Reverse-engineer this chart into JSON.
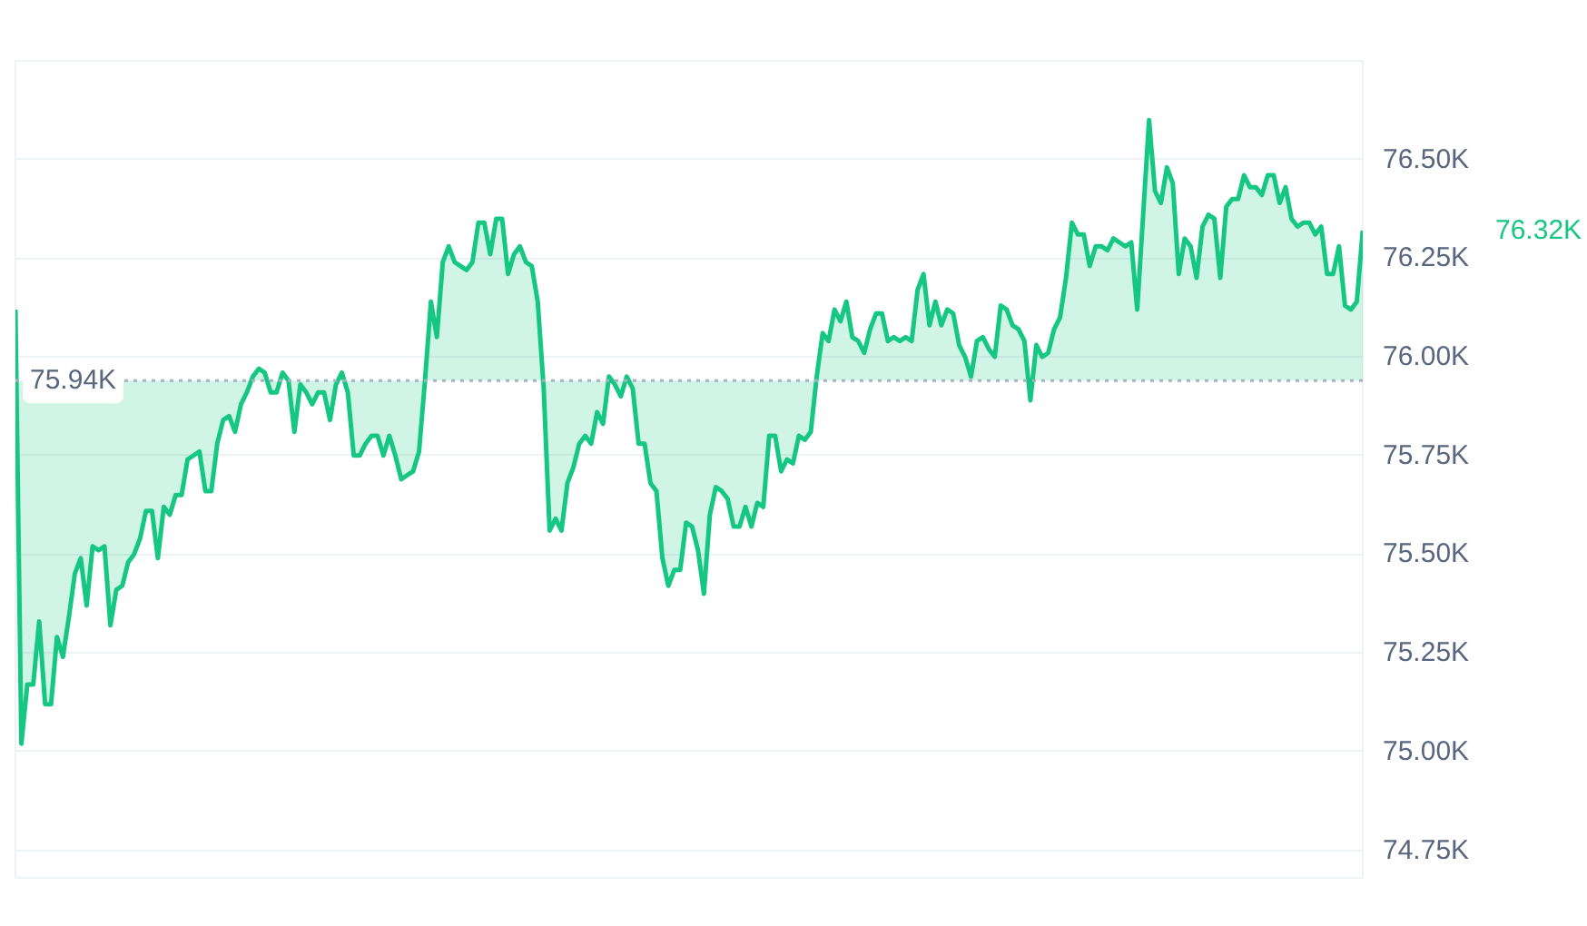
{
  "chart_data": {
    "type": "area",
    "categories": [
      null,
      null,
      null,
      null,
      null,
      null,
      null,
      null,
      null,
      null,
      null,
      null,
      null,
      null,
      null,
      null,
      null,
      null,
      null,
      null,
      null,
      null,
      null,
      null,
      null,
      null,
      null,
      null,
      null,
      null,
      null,
      null,
      null,
      null,
      null,
      null,
      null,
      null,
      null,
      null,
      null,
      null,
      null,
      null,
      null,
      null,
      null,
      null,
      null,
      null,
      null,
      null,
      null,
      null,
      null,
      null,
      null,
      null,
      null,
      null,
      null,
      null,
      null,
      null,
      null,
      null,
      null,
      null,
      null,
      null,
      null,
      null,
      null,
      null,
      null,
      null,
      null,
      null,
      null,
      null,
      null,
      null,
      null,
      null,
      null,
      null,
      null,
      null,
      null,
      null,
      null,
      null,
      null,
      null,
      null,
      null,
      null,
      null,
      null,
      null,
      null,
      null,
      null,
      null,
      null,
      null,
      null,
      null,
      null,
      null,
      null,
      null,
      null,
      null,
      null,
      null,
      null,
      null,
      null,
      null,
      null,
      null,
      null,
      null,
      null,
      null,
      null,
      null,
      null,
      null,
      null,
      null,
      null,
      null,
      null,
      null,
      null,
      null,
      null,
      null,
      null,
      null,
      null,
      null,
      null,
      null,
      null,
      null,
      null,
      null,
      null,
      null,
      null,
      null,
      null,
      null,
      null,
      null,
      null,
      null,
      null,
      null,
      null,
      null,
      null,
      null,
      null,
      null,
      null,
      null,
      null,
      null,
      null,
      null,
      null,
      null,
      null,
      null,
      null,
      null,
      null,
      null,
      null,
      null,
      null,
      null,
      null,
      null,
      null,
      null,
      null,
      null,
      null,
      null,
      null,
      null,
      null,
      null,
      null,
      null,
      null,
      null,
      null,
      null,
      null,
      null,
      null,
      null,
      null,
      null,
      null,
      null,
      null,
      null,
      null,
      null,
      null,
      null,
      null,
      null,
      null,
      null,
      null,
      null,
      null,
      null,
      null,
      null
    ],
    "series": [
      {
        "color": "#16c784",
        "values": [
          76.12,
          75.02,
          75.17,
          75.17,
          75.33,
          75.12,
          75.12,
          75.29,
          75.24,
          75.34,
          75.45,
          75.49,
          75.37,
          75.52,
          75.51,
          75.52,
          75.32,
          75.41,
          75.42,
          75.48,
          75.5,
          75.54,
          75.61,
          75.61,
          75.49,
          75.62,
          75.6,
          75.65,
          75.65,
          75.74,
          75.75,
          75.76,
          75.66,
          75.66,
          75.78,
          75.84,
          75.85,
          75.81,
          75.88,
          75.91,
          75.95,
          75.97,
          75.96,
          75.91,
          75.91,
          75.96,
          75.94,
          75.81,
          75.93,
          75.91,
          75.88,
          75.91,
          75.91,
          75.84,
          75.93,
          75.96,
          75.91,
          75.75,
          75.75,
          75.78,
          75.8,
          75.8,
          75.75,
          75.8,
          75.75,
          75.69,
          75.7,
          75.71,
          75.76,
          75.94,
          76.14,
          76.05,
          76.24,
          76.28,
          76.24,
          76.23,
          76.22,
          76.24,
          76.34,
          76.34,
          76.26,
          76.35,
          76.35,
          76.21,
          76.26,
          76.28,
          76.24,
          76.23,
          76.14,
          75.92,
          75.56,
          75.59,
          75.56,
          75.68,
          75.72,
          75.78,
          75.8,
          75.78,
          75.86,
          75.83,
          75.95,
          75.93,
          75.9,
          75.95,
          75.92,
          75.78,
          75.78,
          75.68,
          75.66,
          75.49,
          75.42,
          75.46,
          75.46,
          75.58,
          75.57,
          75.51,
          75.4,
          75.6,
          75.67,
          75.66,
          75.64,
          75.57,
          75.57,
          75.62,
          75.57,
          75.63,
          75.62,
          75.8,
          75.8,
          75.71,
          75.74,
          75.73,
          75.8,
          75.79,
          75.81,
          75.95,
          76.06,
          76.04,
          76.12,
          76.09,
          76.14,
          76.05,
          76.04,
          76.01,
          76.07,
          76.11,
          76.11,
          76.04,
          76.05,
          76.04,
          76.05,
          76.04,
          76.17,
          76.21,
          76.08,
          76.14,
          76.08,
          76.12,
          76.11,
          76.03,
          76.0,
          75.95,
          76.04,
          76.05,
          76.02,
          76.0,
          76.13,
          76.12,
          76.08,
          76.07,
          76.04,
          75.89,
          76.03,
          76.0,
          76.01,
          76.07,
          76.1,
          76.2,
          76.34,
          76.31,
          76.31,
          76.23,
          76.28,
          76.28,
          76.27,
          76.3,
          76.29,
          76.28,
          76.29,
          76.12,
          76.36,
          76.6,
          76.42,
          76.39,
          76.48,
          76.44,
          76.21,
          76.3,
          76.28,
          76.2,
          76.33,
          76.36,
          76.35,
          76.2,
          76.38,
          76.4,
          76.4,
          76.46,
          76.43,
          76.43,
          76.41,
          76.46,
          76.46,
          76.39,
          76.43,
          76.35,
          76.33,
          76.34,
          76.34,
          76.31,
          76.33,
          76.21,
          76.21,
          76.28,
          76.13,
          76.12,
          76.14,
          76.32
        ]
      }
    ],
    "ylim": [
      74.68,
      76.75
    ],
    "yticks": [
      {
        "value": 74.75,
        "label": "74.75K"
      },
      {
        "value": 75.0,
        "label": "75.00K"
      },
      {
        "value": 75.25,
        "label": "75.25K"
      },
      {
        "value": 75.5,
        "label": "75.50K"
      },
      {
        "value": 75.75,
        "label": "75.75K"
      },
      {
        "value": 76.0,
        "label": "76.00K"
      },
      {
        "value": 76.25,
        "label": "76.25K"
      },
      {
        "value": 76.5,
        "label": "76.50K"
      }
    ],
    "ref_lines": [
      {
        "axis": "y",
        "value": 75.94,
        "label": "75.94K",
        "color": "#a6b0c3",
        "line_style": "dotted"
      }
    ],
    "annotations": [
      "76.32K"
    ],
    "grid": "y",
    "tick_labels": "y"
  }
}
